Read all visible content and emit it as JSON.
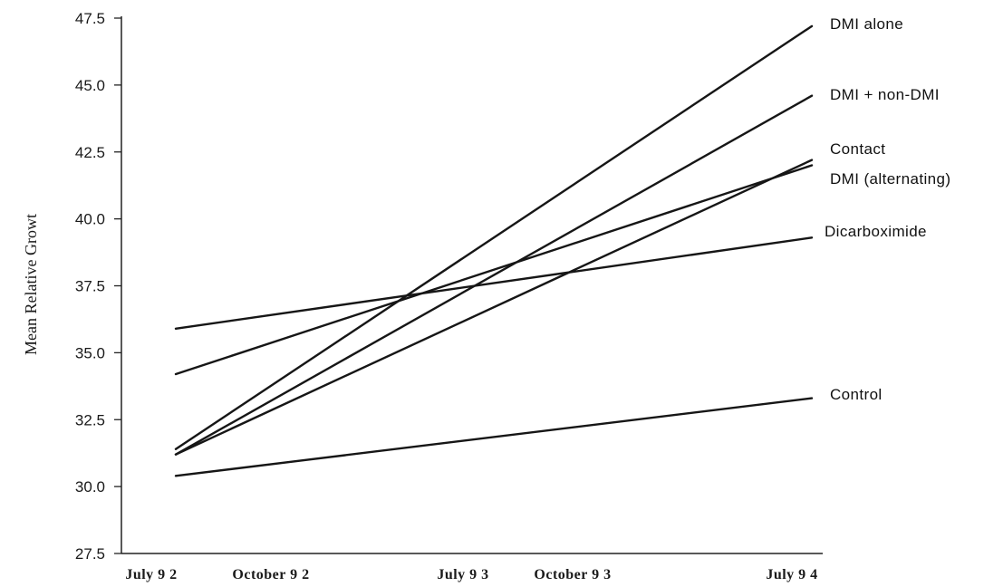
{
  "chart_data": {
    "type": "line",
    "ylabel": "Mean Relative Growt",
    "xlabel": "",
    "ylim": [
      27.5,
      47.5
    ],
    "yticks": [
      "47.5",
      "45.0",
      "42.5",
      "40.0",
      "37.5",
      "35.0",
      "32.5",
      "30.0",
      "27.5"
    ],
    "xticks": [
      "July 9 2",
      "October 9 2",
      "July 9 3",
      "October 9 3",
      "July 9 4"
    ],
    "x_start": "July 9 2",
    "x_end": "July 9 4",
    "grid": false,
    "series": [
      {
        "name": "DMI alone",
        "values": [
          31.4,
          47.2
        ]
      },
      {
        "name": "DMI + non-DMI",
        "values": [
          31.2,
          44.6
        ]
      },
      {
        "name": "Contact",
        "values": [
          31.2,
          42.2
        ]
      },
      {
        "name": "DMI (alternating)",
        "values": [
          34.2,
          42.0
        ]
      },
      {
        "name": "Dicarboximide",
        "values": [
          35.9,
          39.3
        ]
      },
      {
        "name": "Control",
        "values": [
          30.4,
          33.3
        ]
      }
    ]
  }
}
